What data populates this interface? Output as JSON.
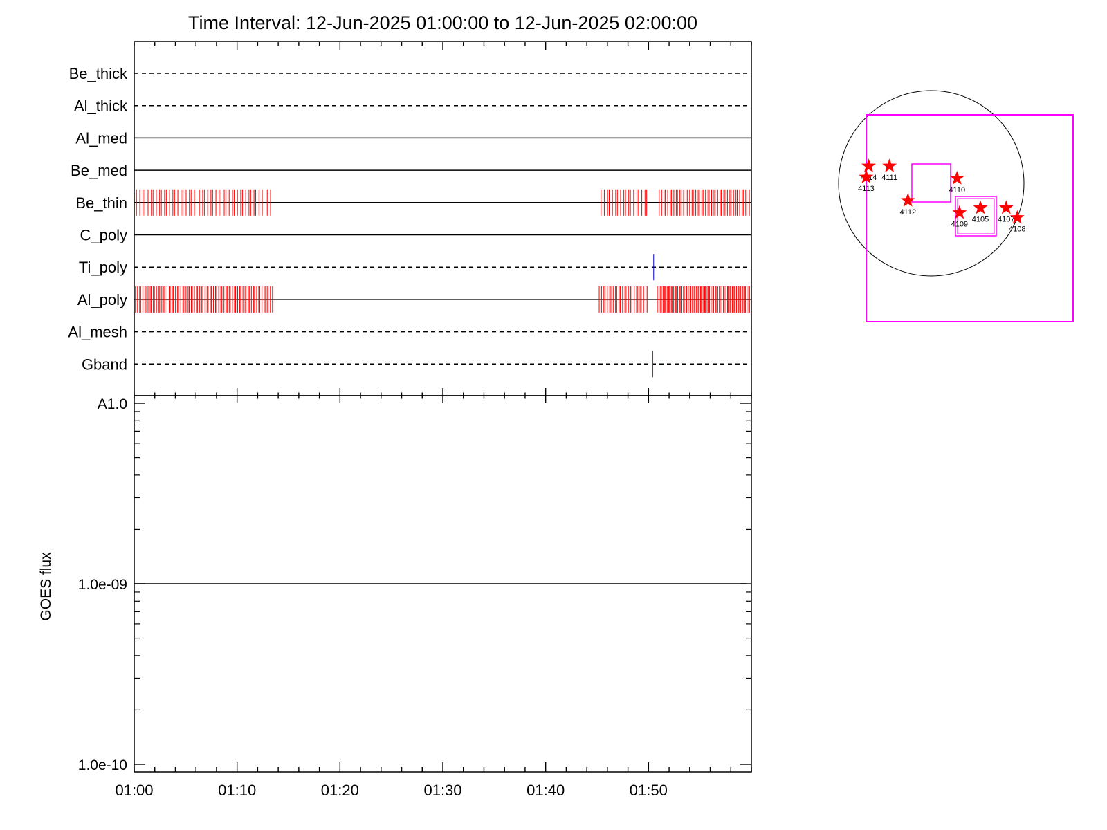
{
  "chart_data": [
    {
      "type": "timeline",
      "title": "Time Interval: 12-Jun-2025 01:00:00 to 12-Jun-2025 02:00:00",
      "x_range": [
        "01:00",
        "02:00"
      ],
      "channels": [
        {
          "name": "Be_thick",
          "line": "dashed",
          "events": []
        },
        {
          "name": "Al_thick",
          "line": "dashed",
          "events": []
        },
        {
          "name": "Al_med",
          "line": "solid",
          "events": []
        },
        {
          "name": "Be_med",
          "line": "solid",
          "events": []
        },
        {
          "name": "Be_thin",
          "line": "solid",
          "event_color": "#ff0000",
          "event_ranges": [
            [
              "01:00:10",
              "01:13:20",
              50
            ],
            [
              "01:45:20",
              "01:50:00",
              18
            ],
            [
              "01:51:00",
              "01:59:55",
              46
            ]
          ],
          "events": []
        },
        {
          "name": "C_poly",
          "line": "solid",
          "events": []
        },
        {
          "name": "Ti_poly",
          "line": "dashed",
          "event_color": "#0000cc",
          "events": [
            "01:50:30"
          ]
        },
        {
          "name": "Al_poly",
          "line": "solid",
          "event_color": "#ff0000",
          "event_ranges": [
            [
              "01:00:05",
              "01:13:30",
              80
            ],
            [
              "01:45:10",
              "01:50:00",
              26
            ],
            [
              "01:50:50",
              "01:59:55",
              70
            ]
          ],
          "events": []
        },
        {
          "name": "Al_mesh",
          "line": "dashed",
          "events": []
        },
        {
          "name": "Gband",
          "line": "dashed",
          "event_color": "#ff0000",
          "events": [
            "01:50:25"
          ]
        }
      ]
    },
    {
      "type": "line",
      "ylabel": "GOES flux",
      "y_scale": "log",
      "ylim": [
        1e-10,
        1e-08
      ],
      "y_ticks": [
        {
          "value": 1e-08,
          "label": "A1.0"
        },
        {
          "value": 1e-09,
          "label": "1.0e-09"
        },
        {
          "value": 1e-10,
          "label": "1.0e-10"
        }
      ],
      "x_ticks": [
        "01:00",
        "01:10",
        "01:20",
        "01:30",
        "01:40",
        "01:50"
      ],
      "series": [
        {
          "values": [
            {
              "x": "01:00",
              "y": 1e-09
            },
            {
              "x": "01:59:30",
              "y": 1e-09
            }
          ]
        }
      ]
    },
    {
      "type": "scatter",
      "regions": [
        {
          "label": "4114",
          "x": -1.02,
          "y": 0.28
        },
        {
          "label": "4113",
          "x": -1.06,
          "y": 0.1
        },
        {
          "label": "4111",
          "x": -0.68,
          "y": 0.28
        },
        {
          "label": "4112",
          "x": -0.38,
          "y": -0.28
        },
        {
          "label": "4110",
          "x": 0.42,
          "y": 0.08
        },
        {
          "label": "4109",
          "x": 0.46,
          "y": -0.48
        },
        {
          "label": "4105",
          "x": 0.8,
          "y": -0.4
        },
        {
          "label": "4107",
          "x": 1.22,
          "y": -0.4
        },
        {
          "label": "4108",
          "x": 1.4,
          "y": -0.56
        }
      ]
    }
  ]
}
